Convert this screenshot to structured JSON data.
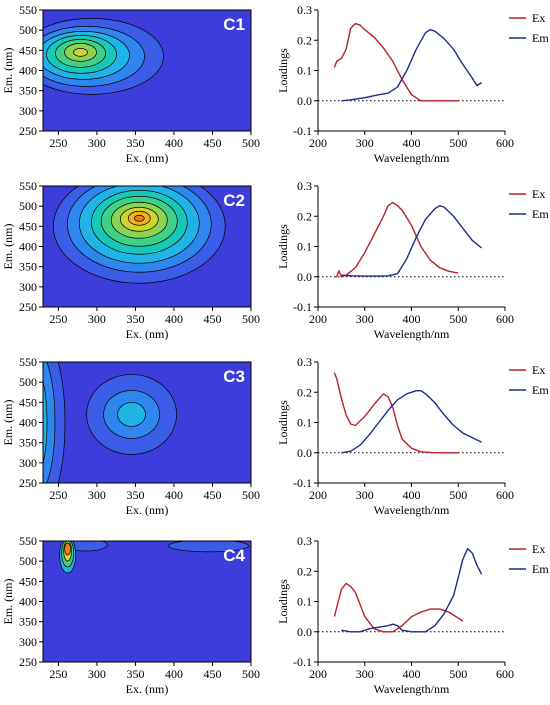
{
  "colors": {
    "ex": "#b5222a",
    "em": "#1c2c8c",
    "contour_levels": [
      "#3d3ddb",
      "#3a5ce6",
      "#2f86ee",
      "#1fb3e6",
      "#17c7b8",
      "#3fcf86",
      "#8bd452",
      "#cfd32f",
      "#f2b11f",
      "#f07d13"
    ]
  },
  "chart_data": [
    {
      "id": "C1-contour",
      "type": "heatmap",
      "label": "C1",
      "xlabel": "Ex. (nm)",
      "ylabel": "Em. (nm)",
      "xlim": [
        230,
        500
      ],
      "ylim": [
        250,
        550
      ],
      "xticks": [
        250,
        300,
        350,
        400,
        450,
        500
      ],
      "yticks": [
        250,
        300,
        350,
        400,
        450,
        500,
        550
      ],
      "peak": {
        "x": 280,
        "y": 445
      }
    },
    {
      "id": "C1-loadings",
      "type": "line",
      "xlabel": "Wavelength/nm",
      "ylabel": "Loadings",
      "xlim": [
        200,
        600
      ],
      "ylim": [
        -0.1,
        0.3
      ],
      "xticks": [
        200,
        300,
        400,
        500,
        600
      ],
      "yticks": [
        -0.1,
        0.0,
        0.1,
        0.2,
        0.3
      ],
      "legend": "top-right",
      "series": [
        {
          "name": "Ex",
          "x": [
            235,
            240,
            250,
            260,
            270,
            280,
            290,
            300,
            320,
            340,
            360,
            380,
            400,
            420,
            450,
            500
          ],
          "y": [
            0.11,
            0.13,
            0.14,
            0.17,
            0.24,
            0.255,
            0.25,
            0.235,
            0.21,
            0.175,
            0.13,
            0.07,
            0.02,
            0.0,
            0.0,
            0.0
          ]
        },
        {
          "name": "Em",
          "x": [
            250,
            270,
            300,
            330,
            350,
            370,
            390,
            410,
            430,
            440,
            450,
            470,
            490,
            510,
            530,
            540,
            550
          ],
          "y": [
            0.0,
            0.003,
            0.01,
            0.02,
            0.025,
            0.045,
            0.1,
            0.17,
            0.225,
            0.235,
            0.23,
            0.205,
            0.17,
            0.12,
            0.075,
            0.05,
            0.06
          ]
        }
      ]
    },
    {
      "id": "C2-contour",
      "type": "heatmap",
      "label": "C2",
      "xlabel": "Ex. (nm)",
      "ylabel": "Em. (nm)",
      "xlim": [
        230,
        500
      ],
      "ylim": [
        250,
        550
      ],
      "xticks": [
        250,
        300,
        350,
        400,
        450,
        500
      ],
      "yticks": [
        250,
        300,
        350,
        400,
        450,
        500,
        550
      ],
      "peak": {
        "x": 355,
        "y": 470
      }
    },
    {
      "id": "C2-loadings",
      "type": "line",
      "xlabel": "Wavelength/nm",
      "ylabel": "Loadings",
      "xlim": [
        200,
        600
      ],
      "ylim": [
        -0.1,
        0.3
      ],
      "xticks": [
        200,
        300,
        400,
        500,
        600
      ],
      "yticks": [
        -0.1,
        0.0,
        0.1,
        0.2,
        0.3
      ],
      "legend": "top-right",
      "series": [
        {
          "name": "Ex",
          "x": [
            235,
            240,
            245,
            250,
            260,
            280,
            300,
            320,
            340,
            350,
            360,
            370,
            380,
            400,
            420,
            440,
            460,
            480,
            500
          ],
          "y": [
            0.0,
            0.0,
            0.02,
            0.0,
            0.005,
            0.03,
            0.08,
            0.14,
            0.2,
            0.235,
            0.245,
            0.235,
            0.22,
            0.17,
            0.1,
            0.055,
            0.03,
            0.018,
            0.012
          ]
        },
        {
          "name": "Em",
          "x": [
            250,
            270,
            300,
            330,
            350,
            370,
            390,
            410,
            430,
            450,
            460,
            470,
            490,
            510,
            530,
            550
          ],
          "y": [
            0.005,
            0.003,
            0.002,
            0.002,
            0.003,
            0.01,
            0.06,
            0.13,
            0.19,
            0.225,
            0.235,
            0.23,
            0.2,
            0.16,
            0.12,
            0.095
          ]
        }
      ]
    },
    {
      "id": "C3-contour",
      "type": "heatmap",
      "label": "C3",
      "xlabel": "Ex. (nm)",
      "ylabel": "Em. (nm)",
      "xlim": [
        230,
        500
      ],
      "ylim": [
        250,
        550
      ],
      "xticks": [
        250,
        300,
        350,
        400,
        450,
        500
      ],
      "yticks": [
        250,
        300,
        350,
        400,
        450,
        500,
        550
      ],
      "peak": {
        "x": 345,
        "y": 420
      }
    },
    {
      "id": "C3-loadings",
      "type": "line",
      "xlabel": "Wavelength/nm",
      "ylabel": "Loadings",
      "xlim": [
        200,
        600
      ],
      "ylim": [
        -0.1,
        0.3
      ],
      "xticks": [
        200,
        300,
        400,
        500,
        600
      ],
      "yticks": [
        -0.1,
        0.0,
        0.1,
        0.2,
        0.3
      ],
      "legend": "top-right",
      "series": [
        {
          "name": "Ex",
          "x": [
            235,
            240,
            250,
            260,
            270,
            280,
            300,
            320,
            340,
            350,
            360,
            370,
            380,
            400,
            420,
            450,
            500
          ],
          "y": [
            0.265,
            0.245,
            0.18,
            0.125,
            0.095,
            0.09,
            0.12,
            0.16,
            0.195,
            0.185,
            0.15,
            0.09,
            0.045,
            0.015,
            0.003,
            0.0,
            0.0
          ]
        },
        {
          "name": "Em",
          "x": [
            250,
            270,
            290,
            310,
            330,
            350,
            370,
            390,
            410,
            420,
            430,
            450,
            470,
            490,
            510,
            530,
            550
          ],
          "y": [
            0.0,
            0.005,
            0.025,
            0.06,
            0.1,
            0.14,
            0.175,
            0.195,
            0.205,
            0.205,
            0.195,
            0.165,
            0.125,
            0.09,
            0.065,
            0.05,
            0.035
          ]
        }
      ]
    },
    {
      "id": "C4-contour",
      "type": "heatmap",
      "label": "C4",
      "xlabel": "Ex. (nm)",
      "ylabel": "Em. (nm)",
      "xlim": [
        230,
        500
      ],
      "ylim": [
        250,
        550
      ],
      "xticks": [
        250,
        300,
        350,
        400,
        450,
        500
      ],
      "yticks": [
        250,
        300,
        350,
        400,
        450,
        500,
        550
      ],
      "peak": {
        "x": 262,
        "y": 540
      }
    },
    {
      "id": "C4-loadings",
      "type": "line",
      "xlabel": "Wavelength/nm",
      "ylabel": "Loadings",
      "xlim": [
        200,
        600
      ],
      "ylim": [
        -0.1,
        0.3
      ],
      "xticks": [
        200,
        300,
        400,
        500,
        600
      ],
      "yticks": [
        -0.1,
        0.0,
        0.1,
        0.2,
        0.3
      ],
      "legend": "top-right",
      "series": [
        {
          "name": "Ex",
          "x": [
            235,
            240,
            250,
            260,
            270,
            280,
            290,
            300,
            320,
            340,
            360,
            380,
            400,
            420,
            440,
            460,
            480,
            500,
            510
          ],
          "y": [
            0.05,
            0.08,
            0.14,
            0.16,
            0.15,
            0.13,
            0.09,
            0.05,
            0.01,
            0.0,
            0.0,
            0.02,
            0.05,
            0.065,
            0.075,
            0.075,
            0.065,
            0.045,
            0.035
          ]
        },
        {
          "name": "Em",
          "x": [
            250,
            270,
            290,
            310,
            330,
            350,
            360,
            370,
            380,
            400,
            430,
            450,
            470,
            490,
            500,
            510,
            520,
            530,
            540,
            550
          ],
          "y": [
            0.005,
            0.0,
            0.0,
            0.01,
            0.015,
            0.02,
            0.025,
            0.02,
            0.005,
            0.0,
            0.0,
            0.02,
            0.06,
            0.12,
            0.18,
            0.24,
            0.275,
            0.26,
            0.22,
            0.19
          ]
        }
      ]
    }
  ]
}
